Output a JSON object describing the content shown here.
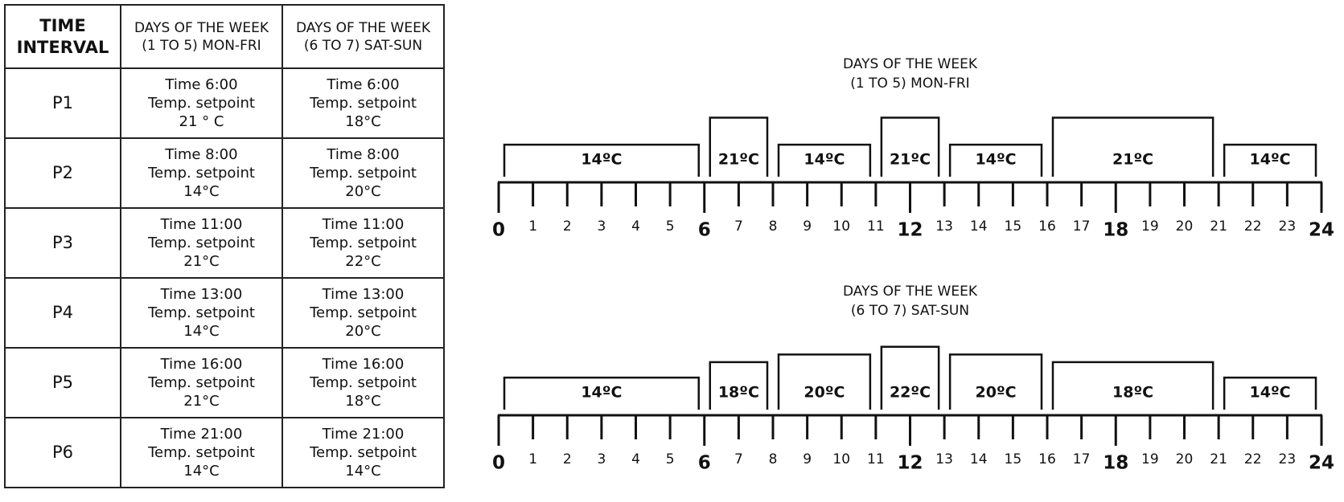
{
  "table": {
    "header": [
      [
        "TIME",
        "INTERVAL"
      ],
      [
        "DAYS OF THE WEEK",
        "(1 TO 5) MON-FRI"
      ],
      [
        "DAYS OF THE WEEK",
        "(6 TO 7) SAT-SUN"
      ]
    ],
    "rows": [
      [
        "P1",
        [
          "Time 6:00",
          "Temp. setpoint",
          "21 ° C"
        ],
        [
          "Time 6:00",
          "Temp. setpoint",
          "18°C"
        ]
      ],
      [
        "P2",
        [
          "Time 8:00",
          "Temp. setpoint",
          "14°C"
        ],
        [
          "Time 8:00",
          "Temp. setpoint",
          "20°C"
        ]
      ],
      [
        "P3",
        [
          "Time 11:00",
          "Temp. setpoint",
          "21°C"
        ],
        [
          "Time 11:00",
          "Temp. setpoint",
          "22°C"
        ]
      ],
      [
        "P4",
        [
          "Time 13:00",
          "Temp. setpoint",
          "14°C"
        ],
        [
          "Time 13:00",
          "Temp. setpoint",
          "20°C"
        ]
      ],
      [
        "P5",
        [
          "Time 16:00",
          "Temp. setpoint",
          "21°C"
        ],
        [
          "Time 16:00",
          "Temp. setpoint",
          "18°C"
        ]
      ],
      [
        "P6",
        [
          "Time 21:00",
          "Temp. setpoint",
          "14°C"
        ],
        [
          "Time 21:00",
          "Temp. setpoint",
          "14°C"
        ]
      ]
    ]
  },
  "timelines": [
    {
      "title": [
        "DAYS OF THE WEEK",
        "(1 TO 5) MON-FRI"
      ],
      "segments": [
        {
          "start": 0,
          "end": 6,
          "temp": 14,
          "label": "14ºC"
        },
        {
          "start": 6,
          "end": 8,
          "temp": 21,
          "label": "21ºC"
        },
        {
          "start": 8,
          "end": 11,
          "temp": 14,
          "label": "14ºC"
        },
        {
          "start": 11,
          "end": 13,
          "temp": 21,
          "label": "21ºC"
        },
        {
          "start": 13,
          "end": 16,
          "temp": 14,
          "label": "14ºC"
        },
        {
          "start": 16,
          "end": 21,
          "temp": 21,
          "label": "21ºC"
        },
        {
          "start": 21,
          "end": 24,
          "temp": 14,
          "label": "14ºC"
        }
      ]
    },
    {
      "title": [
        "DAYS OF THE WEEK",
        "(6 TO 7) SAT-SUN"
      ],
      "segments": [
        {
          "start": 0,
          "end": 6,
          "temp": 14,
          "label": "14ºC"
        },
        {
          "start": 6,
          "end": 8,
          "temp": 18,
          "label": "18ºC"
        },
        {
          "start": 8,
          "end": 11,
          "temp": 20,
          "label": "20ºC"
        },
        {
          "start": 11,
          "end": 13,
          "temp": 22,
          "label": "22ºC"
        },
        {
          "start": 13,
          "end": 16,
          "temp": 20,
          "label": "20ºC"
        },
        {
          "start": 16,
          "end": 21,
          "temp": 18,
          "label": "18ºC"
        },
        {
          "start": 21,
          "end": 24,
          "temp": 14,
          "label": "14ºC"
        }
      ]
    }
  ],
  "axis": {
    "xlim": [
      0,
      24
    ],
    "ticks": [
      0,
      1,
      2,
      3,
      4,
      5,
      6,
      7,
      8,
      9,
      10,
      11,
      12,
      13,
      14,
      15,
      16,
      17,
      18,
      19,
      20,
      21,
      22,
      23,
      24
    ],
    "major_ticks": [
      0,
      6,
      12,
      18,
      24
    ]
  }
}
